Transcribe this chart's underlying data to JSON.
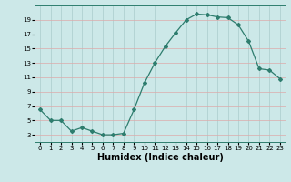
{
  "x": [
    0,
    1,
    2,
    3,
    4,
    5,
    6,
    7,
    8,
    9,
    10,
    11,
    12,
    13,
    14,
    15,
    16,
    17,
    18,
    19,
    20,
    21,
    22,
    23
  ],
  "y": [
    6.5,
    5.0,
    5.0,
    3.5,
    4.0,
    3.5,
    3.0,
    3.0,
    3.2,
    6.5,
    10.2,
    13.0,
    15.3,
    17.2,
    19.0,
    19.8,
    19.7,
    19.4,
    19.3,
    18.3,
    16.0,
    12.2,
    12.0,
    10.8
  ],
  "line_color": "#2e7d6e",
  "marker": "D",
  "marker_size": 2,
  "xlabel": "Humidex (Indice chaleur)",
  "xlim": [
    -0.5,
    23.5
  ],
  "ylim": [
    2,
    21
  ],
  "yticks": [
    3,
    5,
    7,
    9,
    11,
    13,
    15,
    17,
    19
  ],
  "xticks": [
    0,
    1,
    2,
    3,
    4,
    5,
    6,
    7,
    8,
    9,
    10,
    11,
    12,
    13,
    14,
    15,
    16,
    17,
    18,
    19,
    20,
    21,
    22,
    23
  ],
  "bg_color": "#cce8e8",
  "grid_v_color": "#aacccc",
  "grid_h_color": "#ddaaaa",
  "xlabel_fontsize": 7,
  "tick_fontsize": 5
}
